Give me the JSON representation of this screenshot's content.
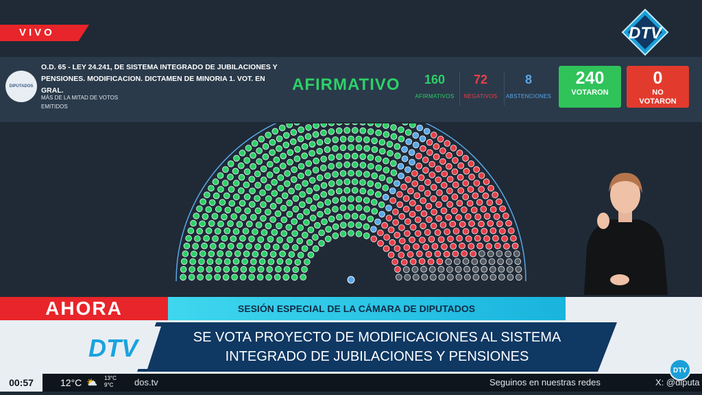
{
  "live_label": "VIVO",
  "brand_logo_text": "DTV",
  "vote_panel": {
    "seal_text": "DIPUTADOS",
    "law_title": "O.D. 65 - LEY 24.241, DE SISTEMA INTEGRADO DE JUBILACIONES Y PENSIONES. MODIFICACION. DICTAMEN DE MINORIA 1. VOT. EN GRAL.",
    "majority_note": "MÁS DE LA MITAD DE VOTOS EMITIDOS",
    "result": "AFIRMATIVO",
    "afirmativos": {
      "value": "160",
      "label": "AFIRMATIVOS",
      "color": "#2dd068"
    },
    "negativos": {
      "value": "72",
      "label": "NEGATIVOS",
      "color": "#e8404a"
    },
    "abstenciones": {
      "value": "8",
      "label": "ABSTENCIONES",
      "color": "#5aa8e8"
    },
    "votaron": {
      "value": "240",
      "label": "VOTARON",
      "color": "#2fc35a"
    },
    "no_votaron": {
      "value": "0",
      "label": "NO VOTARON",
      "color": "#e23b2e"
    }
  },
  "lower_third": {
    "tag": "AHORA",
    "strip": "SESIÓN ESPECIAL DE LA CÁMARA DE DIPUTADOS",
    "headline_line1": "SE VOTA PROYECTO DE MODIFICACIONES AL SISTEMA",
    "headline_line2": "INTEGRADO DE JUBILACIONES Y PENSIONES"
  },
  "ticker": {
    "time": "00:57",
    "temp": "12°C",
    "temp_high": "13°C",
    "temp_low": "9°C",
    "site": "dos.tv",
    "follow": "Seguinos en nuestras redes",
    "social": "X: @diputa"
  }
}
